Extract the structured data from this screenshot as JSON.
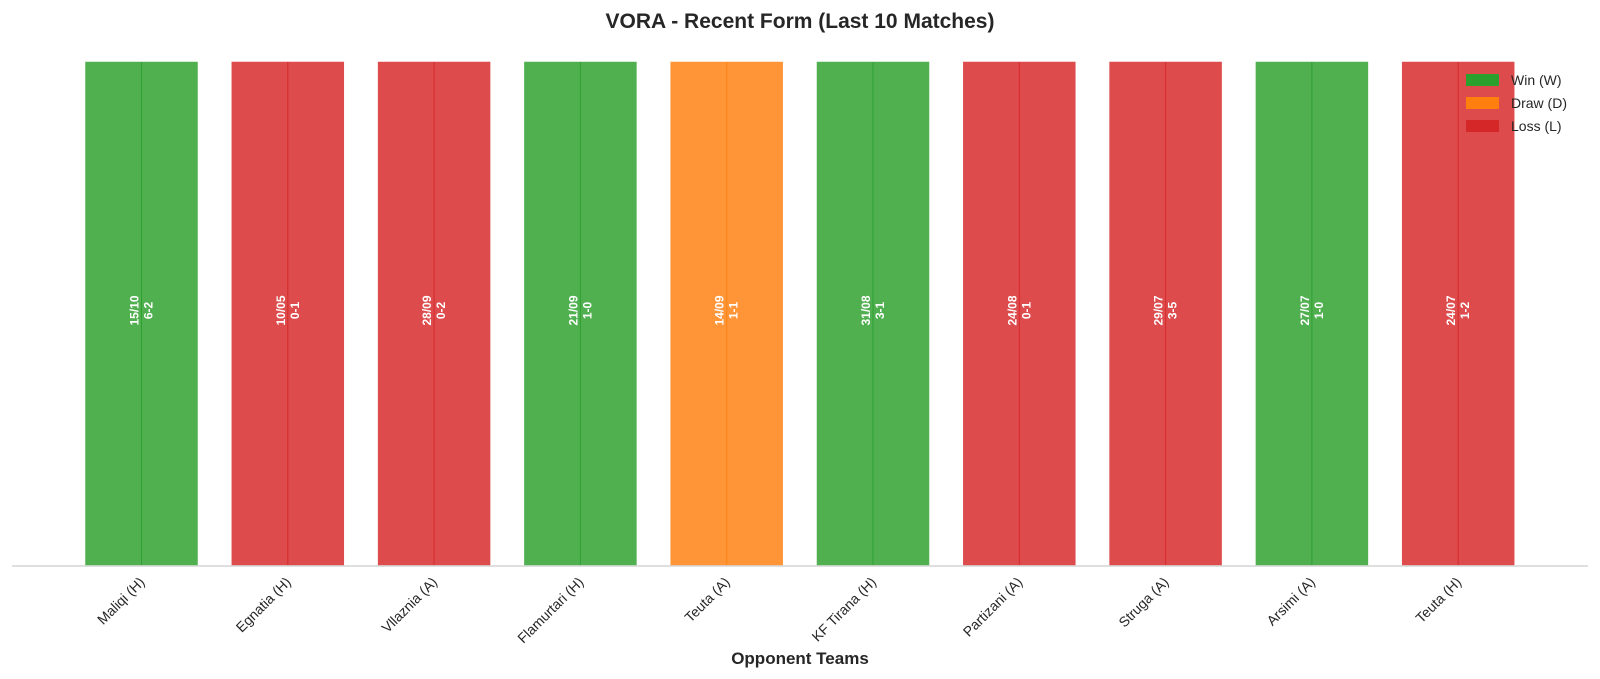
{
  "chart_data": {
    "type": "bar",
    "title": "VORA - Recent Form (Last 10 Matches)",
    "xlabel": "Opponent Teams",
    "ylabel": "",
    "ylim": [
      0,
      1
    ],
    "grid": false,
    "legend_position": "top-right",
    "categories": [
      "Maliqi (H)",
      "Egnatia (H)",
      "Vllaznia (A)",
      "Flamurtari (H)",
      "Teuta (A)",
      "KF Tirana (H)",
      "Partizani (A)",
      "Struga (A)",
      "Arsimi (A)",
      "Teuta (H)"
    ],
    "values": [
      1,
      1,
      1,
      1,
      1,
      1,
      1,
      1,
      1,
      1
    ],
    "results": [
      "W",
      "L",
      "L",
      "W",
      "D",
      "W",
      "L",
      "L",
      "W",
      "L"
    ],
    "dates": [
      "15/10",
      "10/05",
      "28/09",
      "21/09",
      "14/09",
      "31/08",
      "24/08",
      "29/07",
      "27/07",
      "24/07"
    ],
    "scores": [
      "6-2",
      "0-1",
      "0-2",
      "1-0",
      "1-1",
      "3-1",
      "0-1",
      "3-5",
      "1-0",
      "1-2"
    ],
    "legend": [
      {
        "key": "W",
        "label": "Win (W)",
        "color": "#2ca02c"
      },
      {
        "key": "D",
        "label": "Draw (D)",
        "color": "#ff7f0e"
      },
      {
        "key": "L",
        "label": "Loss (L)",
        "color": "#d62728"
      }
    ]
  }
}
